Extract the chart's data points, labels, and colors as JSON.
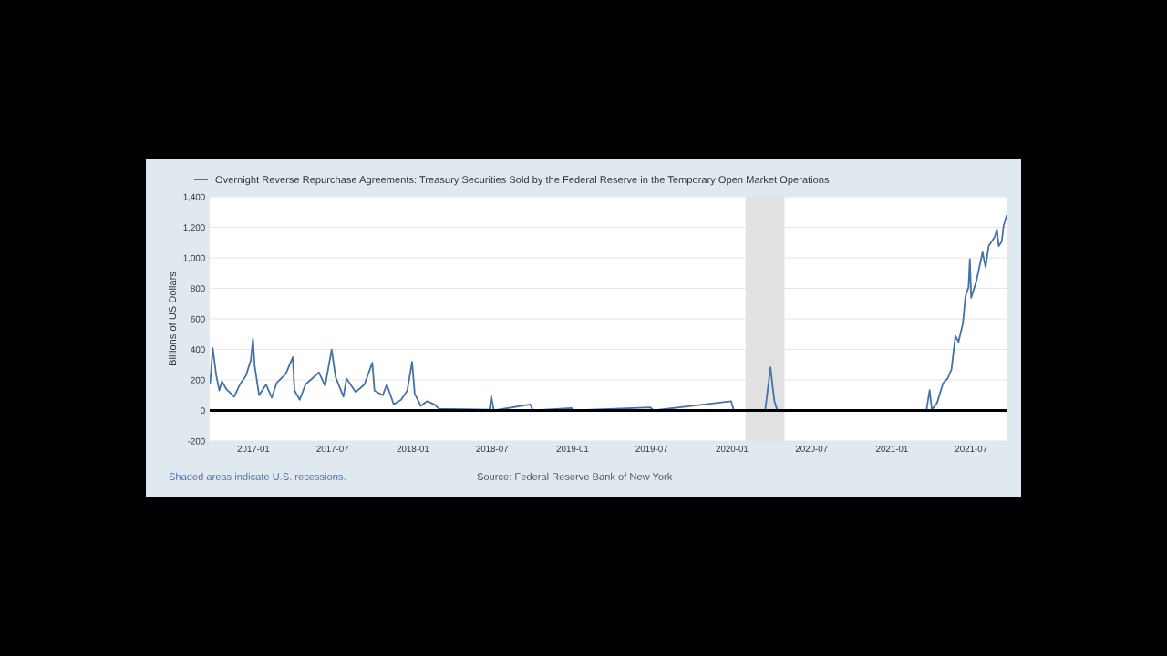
{
  "chart_data": {
    "type": "line",
    "ylabel": "Billions of US Dollars",
    "x": [
      "2016-09-24",
      "2016-09-30",
      "2016-10-08",
      "2016-10-15",
      "2016-10-21",
      "2016-10-31",
      "2016-11-18",
      "2016-12-01",
      "2016-12-15",
      "2016-12-26",
      "2016-12-31",
      "2017-01-04",
      "2017-01-14",
      "2017-01-30",
      "2017-02-12",
      "2017-02-23",
      "2017-03-16",
      "2017-04-01",
      "2017-04-05",
      "2017-04-17",
      "2017-04-30",
      "2017-05-31",
      "2017-06-14",
      "2017-06-29",
      "2017-07-08",
      "2017-07-26",
      "2017-08-02",
      "2017-08-23",
      "2017-09-12",
      "2017-09-30",
      "2017-10-05",
      "2017-10-24",
      "2017-11-02",
      "2017-11-18",
      "2017-12-05",
      "2017-12-19",
      "2017-12-30",
      "2018-01-05",
      "2018-01-19",
      "2018-02-02",
      "2018-02-19",
      "2018-03-02",
      "2018-03-26",
      "2018-05-06",
      "2018-06-25",
      "2018-06-29",
      "2018-07-05",
      "2018-09-26",
      "2018-10-03",
      "2018-12-30",
      "2019-01-05",
      "2019-06-28",
      "2019-07-05",
      "2019-12-30",
      "2020-01-05",
      "2020-03-17",
      "2020-03-29",
      "2020-04-03",
      "2020-04-07",
      "2020-04-13",
      "2020-05-19",
      "2021-03-14",
      "2021-03-21",
      "2021-03-28",
      "2021-04-02",
      "2021-04-14",
      "2021-04-28",
      "2021-05-08",
      "2021-05-17",
      "2021-05-26",
      "2021-06-02",
      "2021-06-12",
      "2021-06-18",
      "2021-06-25",
      "2021-06-28",
      "2021-07-01",
      "2021-07-13",
      "2021-07-27",
      "2021-08-03",
      "2021-08-10",
      "2021-08-24",
      "2021-08-29",
      "2021-09-02",
      "2021-09-09",
      "2021-09-13",
      "2021-09-20"
    ],
    "series": [
      {
        "name": "Overnight Reverse Repurchase Agreements: Treasury Securities Sold by the Federal Reserve in the Temporary Open Market Operations",
        "color": "#4572a7",
        "values": [
          180,
          409,
          229,
          131,
          191,
          140,
          90,
          170,
          229,
          329,
          469,
          289,
          100,
          170,
          84,
          180,
          239,
          349,
          131,
          70,
          170,
          249,
          160,
          399,
          219,
          90,
          209,
          120,
          170,
          313,
          130,
          100,
          170,
          40,
          70,
          130,
          319,
          110,
          30,
          60,
          40,
          10,
          10,
          null,
          5,
          94,
          0,
          40,
          0,
          15,
          0,
          20,
          0,
          60,
          0,
          5,
          283,
          150,
          60,
          5,
          0,
          0,
          5,
          133,
          5,
          50,
          180,
          209,
          269,
          489,
          449,
          568,
          748,
          808,
          991,
          738,
          848,
          1037,
          938,
          1077,
          1137,
          1187,
          1077,
          1107,
          1207,
          1276
        ]
      }
    ],
    "xlim": [
      "2016-09-23",
      "2021-09-22"
    ],
    "xticks": [
      "2017-01",
      "2017-07",
      "2018-01",
      "2018-07",
      "2019-01",
      "2019-07",
      "2020-01",
      "2020-07",
      "2021-01",
      "2021-07"
    ],
    "ylim": [
      -200,
      1400
    ],
    "yticks": [
      -200,
      0,
      200,
      400,
      600,
      800,
      {
        "value": 1000,
        "label": "1,000"
      },
      {
        "value": 1200,
        "label": "1,200"
      },
      {
        "value": 1400,
        "label": "1,400"
      }
    ],
    "bands": [
      {
        "axis": "x",
        "from": "2020-02-01",
        "to": "2020-04-30",
        "color": "#e1e1e1"
      }
    ],
    "ref_lines": [
      {
        "axis": "y",
        "value": 0,
        "color": "#000000"
      }
    ],
    "grid": "y",
    "legend": "top left",
    "annotations": [
      "Shaded areas indicate U.S. recessions.",
      "Source: Federal Reserve Bank of New York"
    ]
  }
}
